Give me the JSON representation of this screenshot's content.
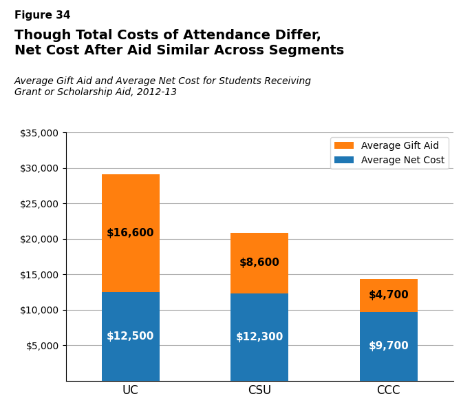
{
  "chart_data": {
    "type": "bar",
    "stacked": true,
    "title": "Though Total Costs of Attendance Differ,\nNet Cost After Aid Similar Across Segments",
    "subtitle": "Average Gift Aid and Average Net Cost for Students Receiving\nGrant or Scholarship Aid, 2012-13",
    "annotations": [
      "Figure 34"
    ],
    "categories": [
      "UC",
      "CSU",
      "CCC"
    ],
    "series": [
      {
        "name": "Average Net Cost",
        "values": [
          12500,
          12300,
          9700
        ],
        "value_labels": [
          "$12,500",
          "$12,300",
          "$9,700"
        ]
      },
      {
        "name": "Average Gift Aid",
        "values": [
          16600,
          8600,
          4700
        ],
        "value_labels": [
          "$16,600",
          "$8,600",
          "$4,700"
        ]
      }
    ],
    "ylim": [
      0,
      35000
    ],
    "yticks": [
      {
        "value": 5000,
        "label": "$5,000"
      },
      {
        "value": 10000,
        "label": "$10,000"
      },
      {
        "value": 15000,
        "label": "$15,000"
      },
      {
        "value": 20000,
        "label": "$20,000"
      },
      {
        "value": 25000,
        "label": "$25,000"
      },
      {
        "value": 30000,
        "label": "$30,000"
      },
      {
        "value": 35000,
        "label": "$35,000"
      }
    ],
    "grid": true,
    "legend": "upper right",
    "data_labels": true
  }
}
